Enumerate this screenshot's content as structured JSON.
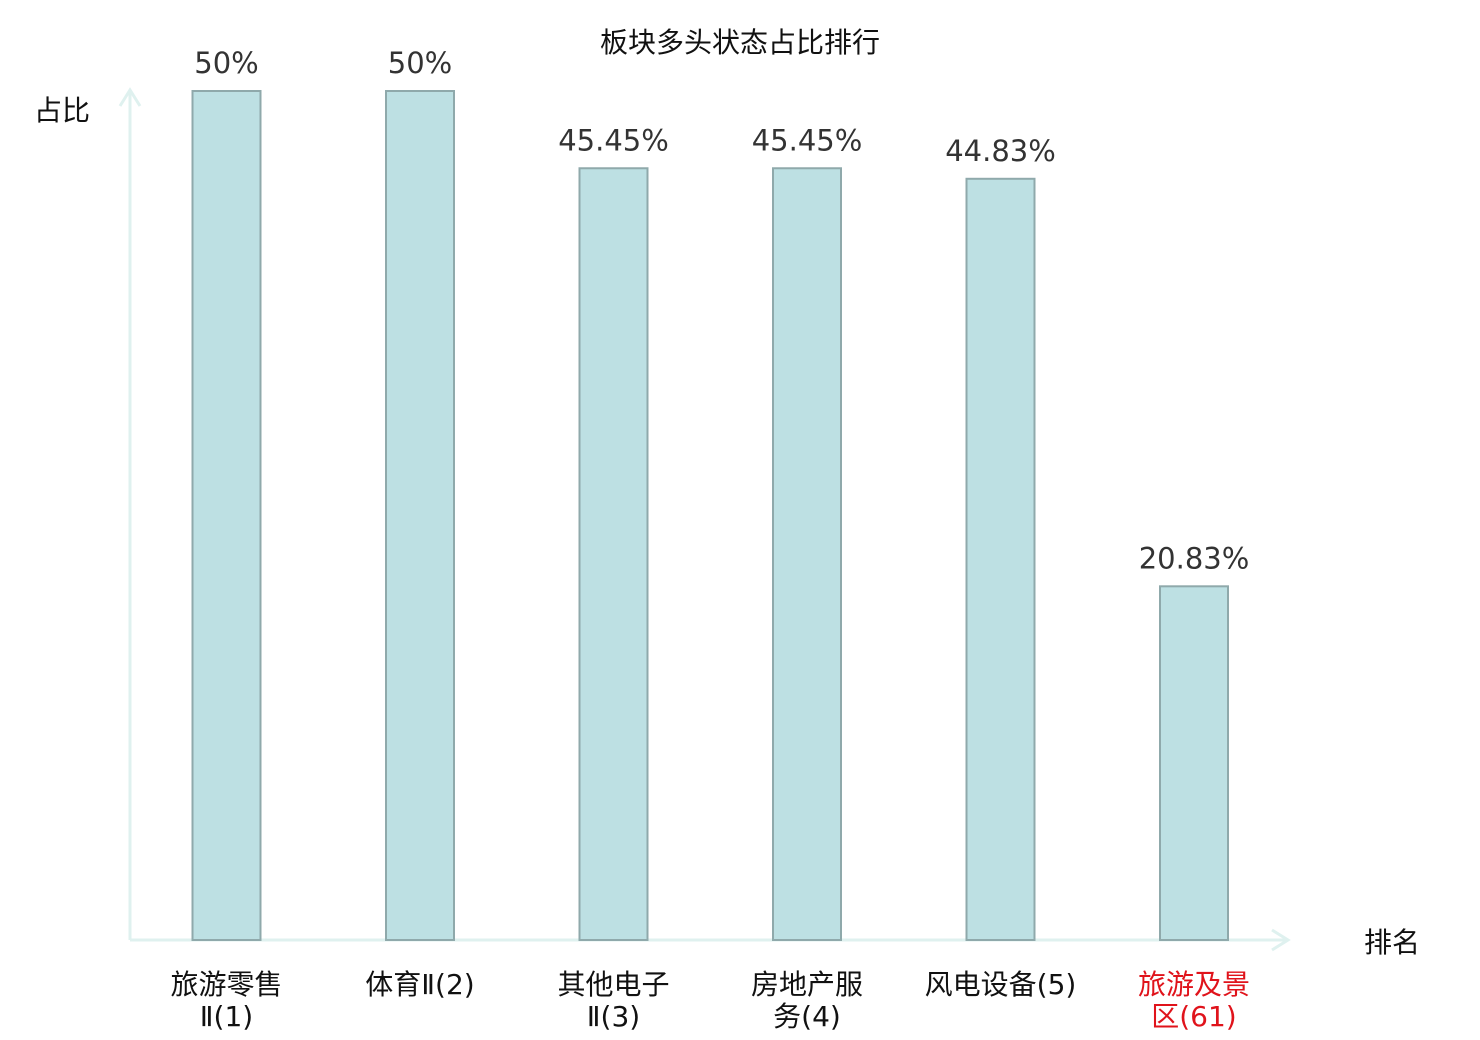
{
  "chart_data": {
    "type": "bar",
    "title": "板块多头状态占比排行",
    "ylabel": "占比",
    "xlabel": "排名",
    "categories": [
      [
        "旅游零售",
        "Ⅱ(1)"
      ],
      [
        "体育Ⅱ(2)"
      ],
      [
        "其他电子",
        "Ⅱ(3)"
      ],
      [
        "房地产服",
        "务(4)"
      ],
      [
        "风电设备(5)"
      ],
      [
        "旅游及景",
        "区(61)"
      ]
    ],
    "values": [
      50,
      50,
      45.45,
      45.45,
      44.83,
      20.83
    ],
    "value_labels": [
      "50%",
      "50%",
      "45.45%",
      "45.45%",
      "44.83%",
      "20.83%"
    ],
    "highlighted_index": 5,
    "ylim": [
      0,
      50
    ],
    "grid": false,
    "legend": "none"
  },
  "colors": {
    "bar_fill": "#bde0e3",
    "bar_stroke": "#8fa9ab",
    "axis": "#dff1ef",
    "text": "#111111",
    "value_text": "#333333",
    "highlight": "#e0131b"
  }
}
